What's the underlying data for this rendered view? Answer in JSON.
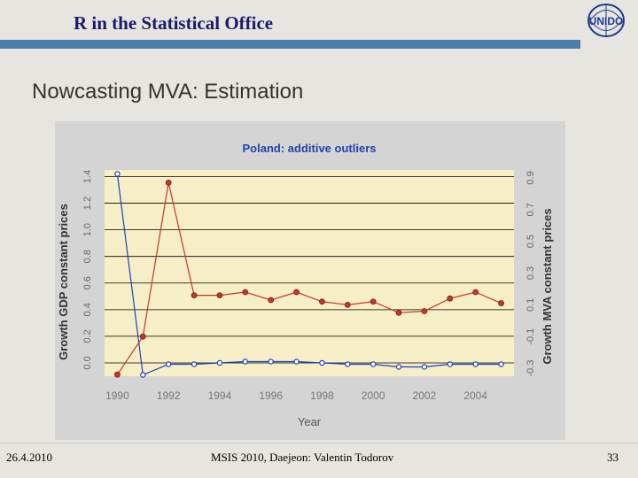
{
  "header": {
    "title": "R in the Statistical Office",
    "logo_text": "UNIDO"
  },
  "slide": {
    "heading": "Nowcasting MVA: Estimation"
  },
  "footer": {
    "date": "26.4.2010",
    "center": "MSIS 2010, Daejeon: Valentin Todorov",
    "page": "33"
  },
  "colors": {
    "header_bar": "#4d7dab",
    "plot_bg": "#f6eec6",
    "gdp_series": "#1f3fbf",
    "mva_series": "#c0392b",
    "title": "#2244aa"
  },
  "chart_data": {
    "type": "line",
    "title": "Poland: additive outliers",
    "xlabel": "Year",
    "ylabel": "Growth GDP constant prices",
    "y2label": "Growth MVA constant prices",
    "xlim": [
      1989.5,
      2005.5
    ],
    "ylim": [
      -0.1,
      1.45
    ],
    "y2lim": [
      -0.35,
      0.95
    ],
    "x_ticks": [
      1990,
      1992,
      1994,
      1996,
      1998,
      2000,
      2002,
      2004
    ],
    "y_ticks": [
      "0.0",
      "0.2",
      "0.4",
      "0.6",
      "0.8",
      "1.0",
      "1.2",
      "1.4"
    ],
    "y2_ticks": [
      "-0.3",
      "-0.1",
      "0.1",
      "0.3",
      "0.5",
      "0.7",
      "0.9"
    ],
    "grid": true,
    "series": [
      {
        "axis": "left",
        "color": "#1f3fbf",
        "x": [
          1990,
          1991,
          1992,
          1993,
          1994,
          1995,
          1996,
          1997,
          1998,
          1999,
          2000,
          2001,
          2002,
          2003,
          2004,
          2005
        ],
        "y": [
          1.42,
          -0.09,
          -0.01,
          -0.01,
          0.0,
          0.01,
          0.01,
          0.01,
          0.0,
          -0.01,
          -0.01,
          -0.03,
          -0.03,
          -0.01,
          -0.01,
          -0.01
        ]
      },
      {
        "axis": "right",
        "color": "#c0392b",
        "x": [
          1990,
          1991,
          1992,
          1993,
          1994,
          1995,
          1996,
          1997,
          1998,
          1999,
          2000,
          2001,
          2002,
          2003,
          2004,
          2005
        ],
        "y": [
          -0.34,
          -0.1,
          0.87,
          0.16,
          0.16,
          0.18,
          0.13,
          0.18,
          0.12,
          0.1,
          0.12,
          0.05,
          0.06,
          0.14,
          0.18,
          0.11
        ]
      }
    ]
  }
}
